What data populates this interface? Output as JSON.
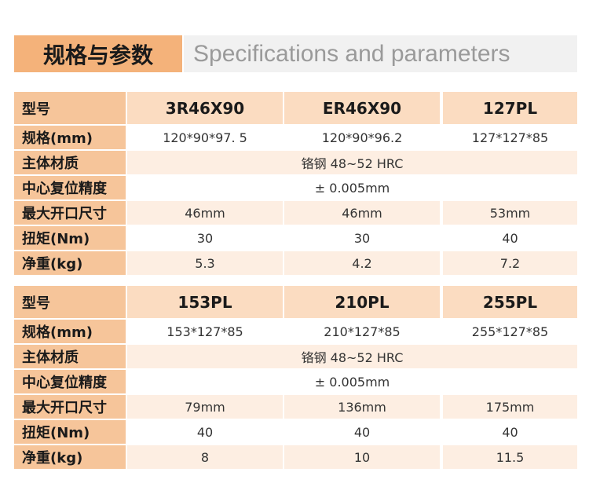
{
  "header": {
    "title_cn": "规格与参数",
    "title_en": "Specifications and parameters"
  },
  "tables": [
    {
      "header": {
        "label": "型号",
        "models": [
          "3R46X90",
          "ER46X90",
          "127PL"
        ]
      },
      "rows": [
        {
          "label": "规格(mm)",
          "values": [
            "120*90*97. 5",
            "120*90*96.2",
            "127*127*85"
          ]
        },
        {
          "label": "主体材质",
          "values": [
            "铬钢 48~52 HRC"
          ]
        },
        {
          "label": "中心复位精度",
          "values": [
            "± 0.005mm"
          ]
        },
        {
          "label": "最大开口尺寸",
          "values": [
            "46mm",
            "46mm",
            "53mm"
          ]
        },
        {
          "label": "扭矩(Nm)",
          "values": [
            "30",
            "30",
            "40"
          ]
        },
        {
          "label": "净重(kg)",
          "values": [
            "5.3",
            "4.2",
            "7.2"
          ]
        }
      ]
    },
    {
      "header": {
        "label": "型号",
        "models": [
          "153PL",
          "210PL",
          "255PL"
        ]
      },
      "rows": [
        {
          "label": "规格(mm)",
          "values": [
            "153*127*85",
            "210*127*85",
            "255*127*85"
          ]
        },
        {
          "label": "主体材质",
          "values": [
            "铬钢 48~52 HRC"
          ]
        },
        {
          "label": "中心复位精度",
          "values": [
            "± 0.005mm"
          ]
        },
        {
          "label": "最大开口尺寸",
          "values": [
            "79mm",
            "136mm",
            "175mm"
          ]
        },
        {
          "label": "扭矩(Nm)",
          "values": [
            "40",
            "40",
            "40"
          ]
        },
        {
          "label": "净重(kg)",
          "values": [
            "8",
            "10",
            "11.5"
          ]
        }
      ]
    }
  ]
}
